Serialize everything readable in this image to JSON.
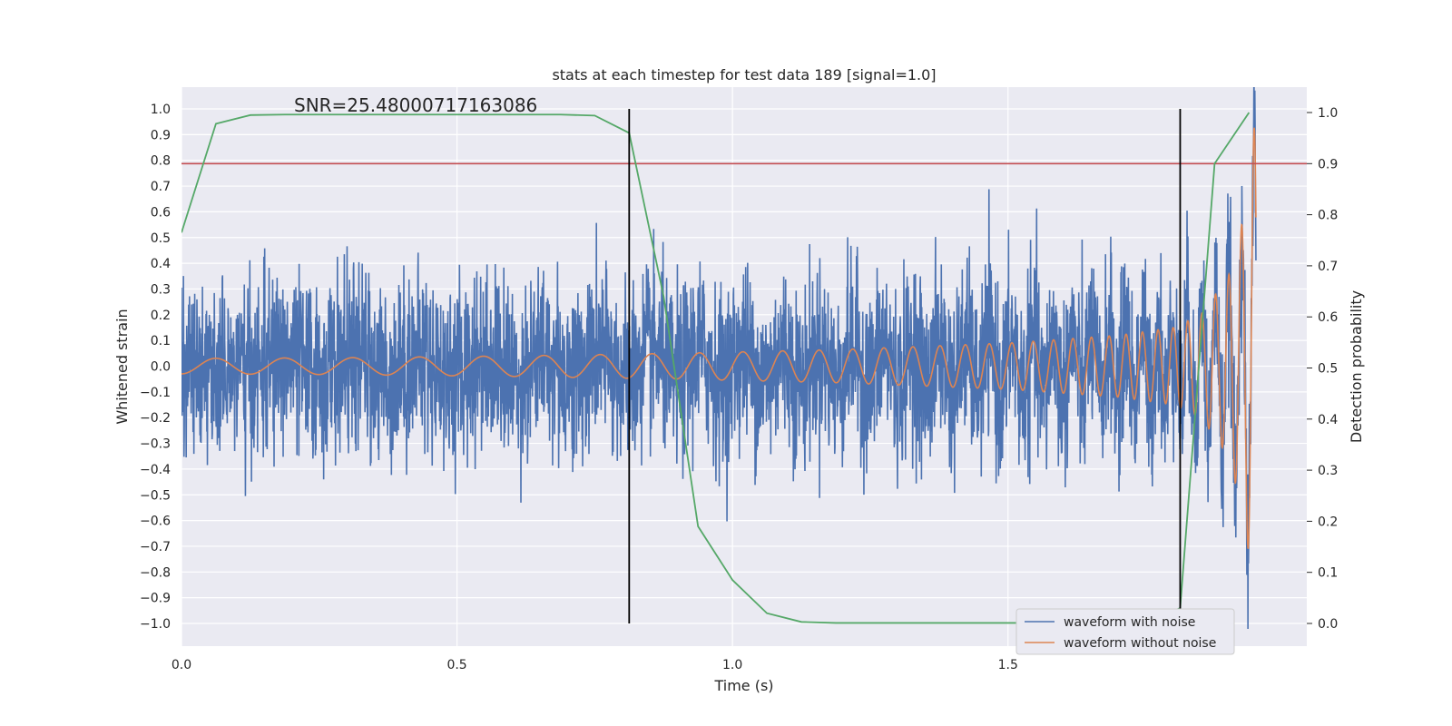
{
  "chart_data": {
    "type": "line",
    "title": "stats at each timestep for test data 189 [signal=1.0]",
    "annotation": "SNR=25.48000717163086",
    "xlabel": "Time (s)",
    "ylabel_left": "Whitened strain",
    "ylabel_right": "Detection probability",
    "xlim": [
      0.0,
      2.0
    ],
    "ylim_left": [
      -1.1,
      1.1
    ],
    "ylim_right": [
      -0.05,
      1.05
    ],
    "x_ticks": [
      "0.0",
      "0.5",
      "1.0",
      "1.5"
    ],
    "y_ticks_left": [
      "−1.0",
      "−0.9",
      "−0.8",
      "−0.7",
      "−0.6",
      "−0.5",
      "−0.4",
      "−0.3",
      "−0.2",
      "−0.1",
      "0.0",
      "0.1",
      "0.2",
      "0.3",
      "0.4",
      "0.5",
      "0.6",
      "0.7",
      "0.8",
      "0.9",
      "1.0"
    ],
    "y_ticks_right": [
      "0.0",
      "0.1",
      "0.2",
      "0.3",
      "0.4",
      "0.5",
      "0.6",
      "0.7",
      "0.8",
      "0.9",
      "1.0"
    ],
    "grid": true,
    "legend_position": "lower-right",
    "threshold": {
      "axis": "right",
      "value": 0.9,
      "color": "#c44e52"
    },
    "vertical_markers": [
      {
        "x": 0.8125,
        "ymin": -1.0,
        "ymax": 1.0,
        "color": "#000000"
      },
      {
        "x": 1.8125,
        "ymin": -1.0,
        "ymax": 1.0,
        "color": "#000000"
      }
    ],
    "series": [
      {
        "name": "waveform with noise",
        "axis": "left",
        "color": "#4c72b0",
        "x_start": 0.0,
        "x_end": 2.0,
        "sample_rate": 2048,
        "description_values": "broadband noise, envelope approx ±0.5, max 0.64, min -0.67"
      },
      {
        "name": "waveform without noise",
        "axis": "left",
        "color": "#dd8452",
        "x_start": 0.0,
        "x_end": 2.0,
        "chirp_anchor_times": [
          0.0,
          0.3,
          0.6,
          0.9,
          1.2,
          1.5,
          1.7,
          1.8,
          1.85,
          1.9,
          1.93,
          1.95
        ],
        "chirp_anchor_amplitudes": [
          0.03,
          0.033,
          0.04,
          0.05,
          0.065,
          0.09,
          0.12,
          0.15,
          0.2,
          0.35,
          0.6,
          0.99
        ],
        "chirp_freq_start_hz": 8,
        "chirp_freq_end_hz": 45,
        "x_end_signal": 1.95
      },
      {
        "axis": "right",
        "color": "#55a868",
        "x": [
          0.0,
          0.0625,
          0.125,
          0.1875,
          0.25,
          0.3125,
          0.375,
          0.4375,
          0.5,
          0.5625,
          0.625,
          0.6875,
          0.75,
          0.8125,
          0.875,
          0.9375,
          1.0,
          1.0625,
          1.125,
          1.1875,
          1.25,
          1.3125,
          1.375,
          1.4375,
          1.5,
          1.5625,
          1.625,
          1.6875,
          1.75,
          1.8125,
          1.875,
          1.9375
        ],
        "y": [
          0.765,
          0.978,
          0.995,
          0.996,
          0.996,
          0.996,
          0.996,
          0.996,
          0.996,
          0.996,
          0.996,
          0.996,
          0.994,
          0.96,
          0.64,
          0.19,
          0.085,
          0.02,
          0.003,
          0.001,
          0.001,
          0.001,
          0.001,
          0.001,
          0.001,
          0.001,
          0.001,
          0.001,
          0.001,
          0.03,
          0.9,
          1.0
        ]
      }
    ]
  }
}
